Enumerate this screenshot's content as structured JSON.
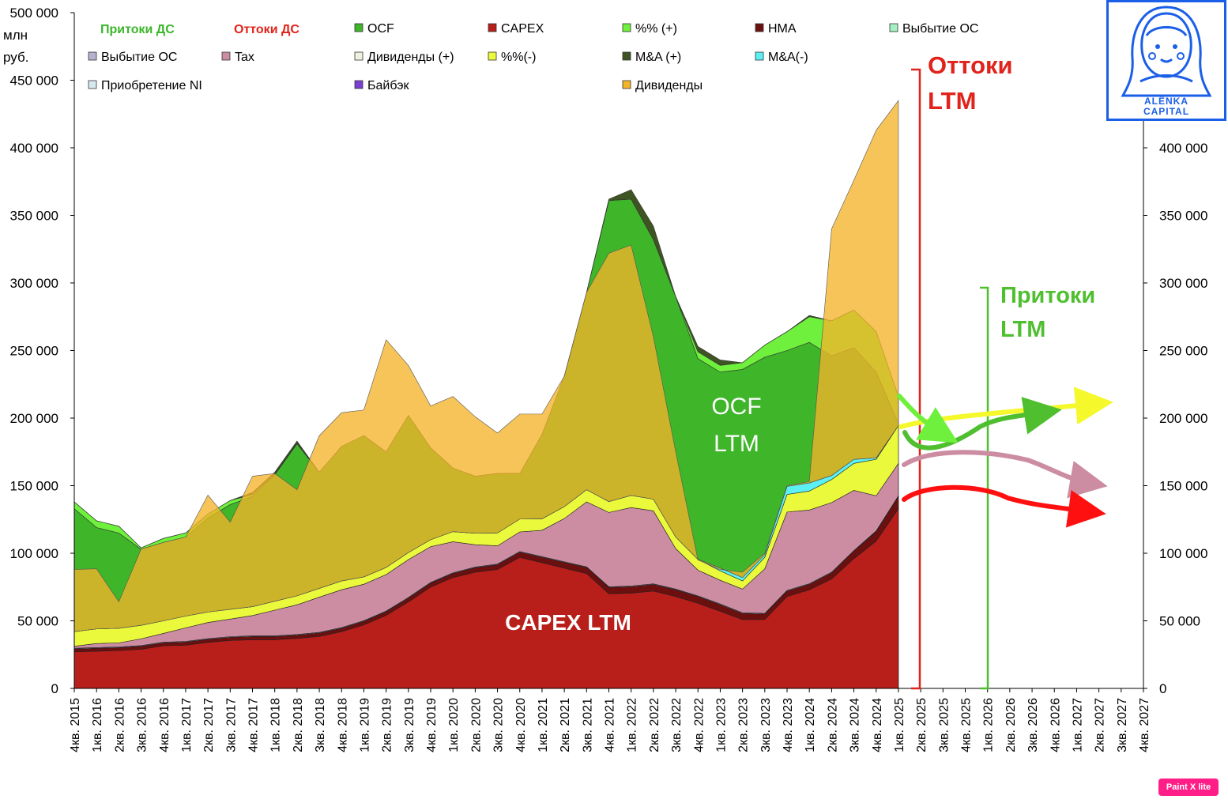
{
  "chart_data": {
    "type": "area",
    "stacked": true,
    "y_unit_label": [
      "млн",
      "руб."
    ],
    "ylim": [
      0,
      500000
    ],
    "yticks": [
      0,
      50000,
      100000,
      150000,
      200000,
      250000,
      300000,
      350000,
      400000,
      450000,
      500000
    ],
    "right_yticks": [
      0,
      50000,
      100000,
      150000,
      200000,
      250000,
      300000,
      350000,
      400000
    ],
    "categories": [
      "4кв. 2015",
      "1кв. 2016",
      "2кв. 2016",
      "3кв. 2016",
      "4кв. 2016",
      "1кв. 2017",
      "2кв. 2017",
      "3кв. 2017",
      "4кв. 2017",
      "1кв. 2018",
      "2кв. 2018",
      "3кв. 2018",
      "4кв. 2018",
      "1кв. 2019",
      "2кв. 2019",
      "3кв. 2019",
      "4кв. 2019",
      "1кв. 2020",
      "2кв. 2020",
      "3кв. 2020",
      "4кв. 2020",
      "1кв. 2021",
      "2кв. 2021",
      "3кв. 2021",
      "4кв. 2021",
      "1кв. 2022",
      "2кв. 2022",
      "3кв. 2022",
      "4кв. 2022",
      "1кв. 2023",
      "2кв. 2023",
      "3кв. 2023",
      "4кв. 2023",
      "1кв. 2024",
      "2кв. 2024",
      "3кв. 2024",
      "4кв. 2024",
      "1кв. 2025",
      "2кв. 2025",
      "3кв. 2025",
      "4кв. 2025",
      "1кв. 2026",
      "2кв. 2026",
      "3кв. 2026",
      "4кв. 2026",
      "1кв. 2027",
      "2кв. 2027",
      "3кв. 2027",
      "4кв. 2027"
    ],
    "outflows": [
      {
        "name": "CAPEX",
        "color": "#b81e1a",
        "values": [
          27000,
          27500,
          28000,
          29000,
          31500,
          32000,
          34000,
          35500,
          36000,
          36000,
          37000,
          38500,
          42000,
          47000,
          54000,
          64000,
          75000,
          82000,
          86000,
          88000,
          97000,
          93000,
          89000,
          85000,
          70000,
          70500,
          72000,
          68000,
          63000,
          57000,
          51000,
          51000,
          68000,
          73000,
          81000,
          96000,
          109000,
          133000
        ]
      },
      {
        "name": "НМА",
        "color": "#6b0f0f",
        "values": [
          2200,
          2200,
          2200,
          2200,
          2200,
          2300,
          2300,
          2300,
          2400,
          2400,
          2400,
          2500,
          2500,
          2600,
          2700,
          2800,
          2900,
          3000,
          3300,
          3500,
          3800,
          4000,
          4200,
          4500,
          4700,
          4800,
          4900,
          5000,
          5000,
          5000,
          4500,
          4000,
          4000,
          4000,
          4500,
          5500,
          7000,
          9000
        ]
      },
      {
        "name": "Выбытие ОС",
        "color": "#b9b0cf",
        "values": [
          500,
          500,
          500,
          500,
          500,
          500,
          500,
          500,
          500,
          500,
          500,
          500,
          500,
          500,
          500,
          500,
          500,
          500,
          500,
          500,
          500,
          500,
          500,
          500,
          500,
          500,
          500,
          500,
          500,
          500,
          500,
          500,
          500,
          500,
          500,
          500,
          500,
          500
        ]
      },
      {
        "name": "Tax",
        "color": "#cc8da3",
        "values": [
          1500,
          3000,
          3000,
          5000,
          6500,
          10000,
          12000,
          13000,
          15000,
          19000,
          22000,
          26000,
          28000,
          27000,
          27000,
          28000,
          26500,
          23000,
          16500,
          13500,
          14500,
          19500,
          32000,
          48000,
          55000,
          58000,
          54000,
          30000,
          19000,
          17500,
          17500,
          33000,
          58000,
          54500,
          51500,
          44500,
          26000,
          24000
        ]
      },
      {
        "name": "%%(-)",
        "color": "#eaf93c",
        "values": [
          10800,
          10800,
          10800,
          10000,
          9300,
          8700,
          7700,
          7200,
          6600,
          6600,
          6600,
          6500,
          6500,
          5400,
          5300,
          5200,
          5100,
          7500,
          8500,
          9500,
          9500,
          8500,
          8800,
          9000,
          8000,
          9000,
          8600,
          8500,
          8000,
          7000,
          6000,
          8500,
          13000,
          14000,
          17000,
          20000,
          27000,
          28000
        ]
      },
      {
        "name": "M&A(-)",
        "color": "#5cf0f5",
        "values": [
          0,
          0,
          0,
          0,
          0,
          0,
          0,
          0,
          0,
          0,
          0,
          0,
          0,
          0,
          0,
          0,
          0,
          0,
          0,
          0,
          0,
          0,
          0,
          0,
          0,
          0,
          0,
          0,
          0,
          2000,
          2500,
          2000,
          6000,
          6000,
          3000,
          3000,
          1000,
          0
        ]
      },
      {
        "name": "Приобретение NI",
        "color": "#d8e8f0",
        "values": [
          0,
          0,
          0,
          0,
          0,
          0,
          0,
          0,
          0,
          0,
          0,
          0,
          0,
          0,
          0,
          0,
          0,
          0,
          0,
          0,
          0,
          0,
          0,
          0,
          0,
          0,
          0,
          0,
          0,
          0,
          0,
          0,
          0,
          0,
          0,
          0,
          0,
          0
        ]
      },
      {
        "name": "Байбэк",
        "color": "#7a3fd0",
        "values": [
          0,
          0,
          0,
          0,
          0,
          0,
          0,
          0,
          0,
          0,
          0,
          0,
          0,
          0,
          0,
          0,
          0,
          0,
          0,
          0,
          0,
          0,
          0,
          0,
          0,
          0,
          0,
          0,
          0,
          0,
          0,
          0,
          0,
          0,
          0,
          0,
          0,
          0
        ]
      },
      {
        "name": "Дивиденды",
        "color": "#f3b42a",
        "values": [
          0,
          0,
          0,
          0,
          0,
          0,
          0,
          0,
          0,
          0,
          0,
          0,
          0,
          0,
          0,
          0,
          0,
          0,
          0,
          0,
          0,
          0,
          0,
          0,
          0,
          0,
          0,
          0,
          0,
          0,
          0,
          0,
          0,
          0,
          0,
          0,
          0,
          0
        ]
      }
    ],
    "inflows": [
      {
        "name": "OCF",
        "color": "#3fb52a",
        "values": [
          133000,
          119000,
          115000,
          103000,
          108000,
          112000,
          126000,
          136000,
          142000,
          158000,
          181000,
          160000,
          179000,
          187000,
          175000,
          202000,
          178000,
          163000,
          157000,
          159000,
          159000,
          188000,
          231000,
          293000,
          361000,
          362000,
          332000,
          290000,
          244000,
          234000,
          236000,
          245000,
          250000,
          256000,
          246000,
          252000,
          234000,
          196000
        ]
      },
      {
        "name": "%% (+)",
        "color": "#6ef03c",
        "values": [
          5000,
          5000,
          5000,
          1000,
          3000,
          3000,
          3000,
          3000,
          1500,
          500,
          500,
          0,
          0,
          0,
          0,
          0,
          0,
          0,
          0,
          0,
          0,
          0,
          0,
          0,
          0,
          0,
          0,
          0,
          5000,
          5000,
          5000,
          9000,
          14000,
          19000,
          26000,
          28000,
          30000,
          20000
        ]
      },
      {
        "name": "M&A (+)",
        "color": "#3e5523",
        "values": [
          0,
          0,
          0,
          0,
          0,
          0,
          0,
          0,
          1500,
          1500,
          1500,
          0,
          0,
          0,
          0,
          0,
          0,
          0,
          0,
          0,
          0,
          0,
          0,
          0,
          1000,
          7000,
          10000,
          0,
          4000,
          4000,
          0,
          0,
          0,
          1000,
          0,
          0,
          0,
          0
        ]
      },
      {
        "name": "Выбытие ОС",
        "color": "#a5f0c0",
        "values": [
          0,
          0,
          0,
          0,
          0,
          0,
          0,
          0,
          0,
          0,
          0,
          0,
          0,
          0,
          0,
          0,
          0,
          0,
          0,
          0,
          0,
          0,
          0,
          0,
          0,
          0,
          0,
          0,
          0,
          0,
          0,
          0,
          0,
          0,
          0,
          0,
          0,
          0
        ]
      },
      {
        "name": "Дивиденды (+)",
        "color": "#f0f0e0",
        "values": [
          0,
          0,
          0,
          0,
          0,
          0,
          0,
          0,
          0,
          0,
          0,
          0,
          0,
          0,
          0,
          0,
          0,
          0,
          0,
          0,
          0,
          0,
          0,
          0,
          0,
          0,
          0,
          0,
          0,
          0,
          0,
          0,
          0,
          0,
          0,
          0,
          0,
          0
        ]
      }
    ],
    "dividends_band_top": [
      88000,
      88500,
      64000,
      103000,
      108000,
      112000,
      143000,
      123000,
      157000,
      159000,
      147000,
      187000,
      204000,
      206000,
      258000,
      239000,
      209000,
      216000,
      201000,
      189000,
      203000,
      203000,
      231000,
      293000,
      322000,
      328000,
      260000,
      175000,
      95000,
      88000,
      86000,
      100000,
      150000,
      153000,
      340000,
      376000,
      413000,
      435000
    ]
  },
  "legend": {
    "inflows_header": "Притоки ДС",
    "outflows_header": "Оттоки ДС",
    "items": [
      "OCF",
      "CAPEX",
      "%% (+)",
      "НМА",
      "Выбытие ОС",
      "Выбытие ОС",
      "Tax",
      "Дивиденды (+)",
      "%%(-)",
      "M&A (+)",
      "M&A(-)",
      "Приобретение NI",
      "Байбэк",
      "Дивиденды"
    ]
  },
  "annotations": {
    "outflows_ltm": [
      "Оттоки",
      "LTM"
    ],
    "inflows_ltm": [
      "Притоки",
      "LTM"
    ],
    "ocf_ltm": [
      "OCF",
      "LTM"
    ],
    "capex_ltm": "CAPEX LTM"
  },
  "colors": {
    "inflow_header": "#3ab62a",
    "outflow_header": "#e0231b",
    "red_bracket": "#e0231b",
    "green_bracket": "#4fbf30"
  },
  "logo": {
    "line1": "ALЁNKA",
    "line2": "CAPITAL"
  },
  "badge": "Paint X lite"
}
